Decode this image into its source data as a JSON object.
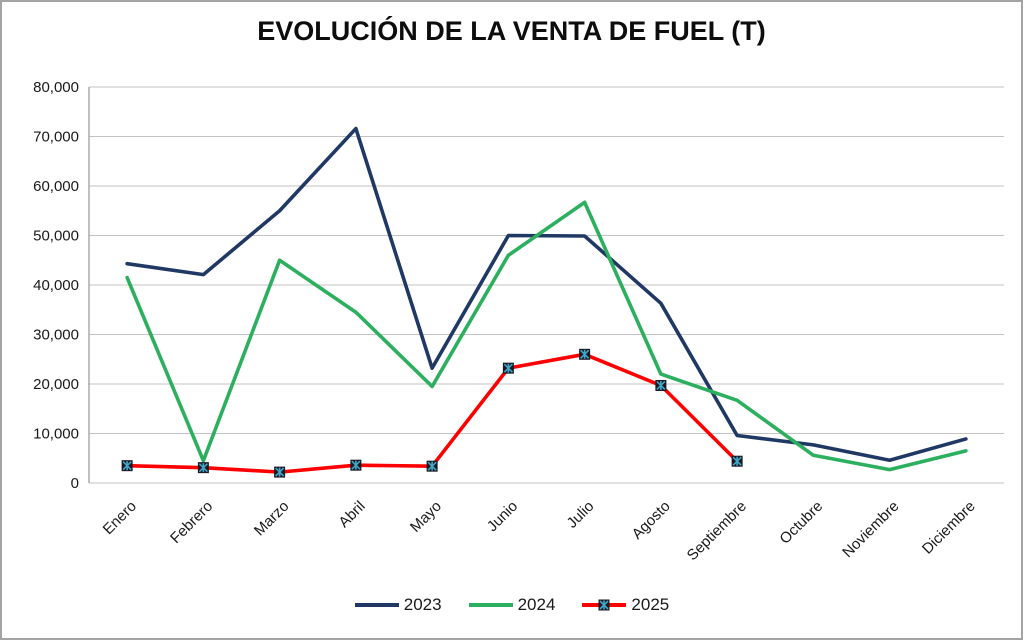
{
  "frame": {
    "background": "#FFFFFF",
    "border_color": "#A3A3A3"
  },
  "chart_data": {
    "type": "line",
    "title": "EVOLUCIÓN DE LA VENTA DE FUEL (T)",
    "xlabel": "",
    "ylabel": "",
    "categories": [
      "Enero",
      "Febrero",
      "Marzo",
      "Abril",
      "Mayo",
      "Junio",
      "Julio",
      "Agosto",
      "Septiembre",
      "Octubre",
      "Noviembre",
      "Diciembre"
    ],
    "series": [
      {
        "name": "2023",
        "color": "#1F3864",
        "marker": "none",
        "values": [
          44300,
          42100,
          55000,
          71600,
          23200,
          50000,
          49900,
          36300,
          9600,
          7700,
          4600,
          8900
        ]
      },
      {
        "name": "2024",
        "color": "#2CAF5E",
        "marker": "none",
        "values": [
          41500,
          4500,
          45000,
          34500,
          19500,
          46000,
          56700,
          22000,
          16700,
          5600,
          2700,
          6500
        ]
      },
      {
        "name": "2025",
        "color": "#FF0000",
        "marker": "x-square",
        "marker_fill": "#1A1A24",
        "marker_stroke": "#41A8C8",
        "values": [
          3500,
          3100,
          2200,
          3600,
          3400,
          23200,
          26000,
          19700,
          4400,
          null,
          null,
          null
        ]
      }
    ],
    "ylim": [
      0,
      80000
    ],
    "ytick_step": 10000,
    "ytick_labels": [
      "0",
      "10,000",
      "20,000",
      "30,000",
      "40,000",
      "50,000",
      "60,000",
      "70,000",
      "80,000"
    ],
    "grid": "horizontal-only",
    "gridline_color": "#C3C3C3",
    "axis_line_color": "#9E9E9E",
    "tick_label_color": "#1A1A1A",
    "legend_position": "bottom"
  }
}
